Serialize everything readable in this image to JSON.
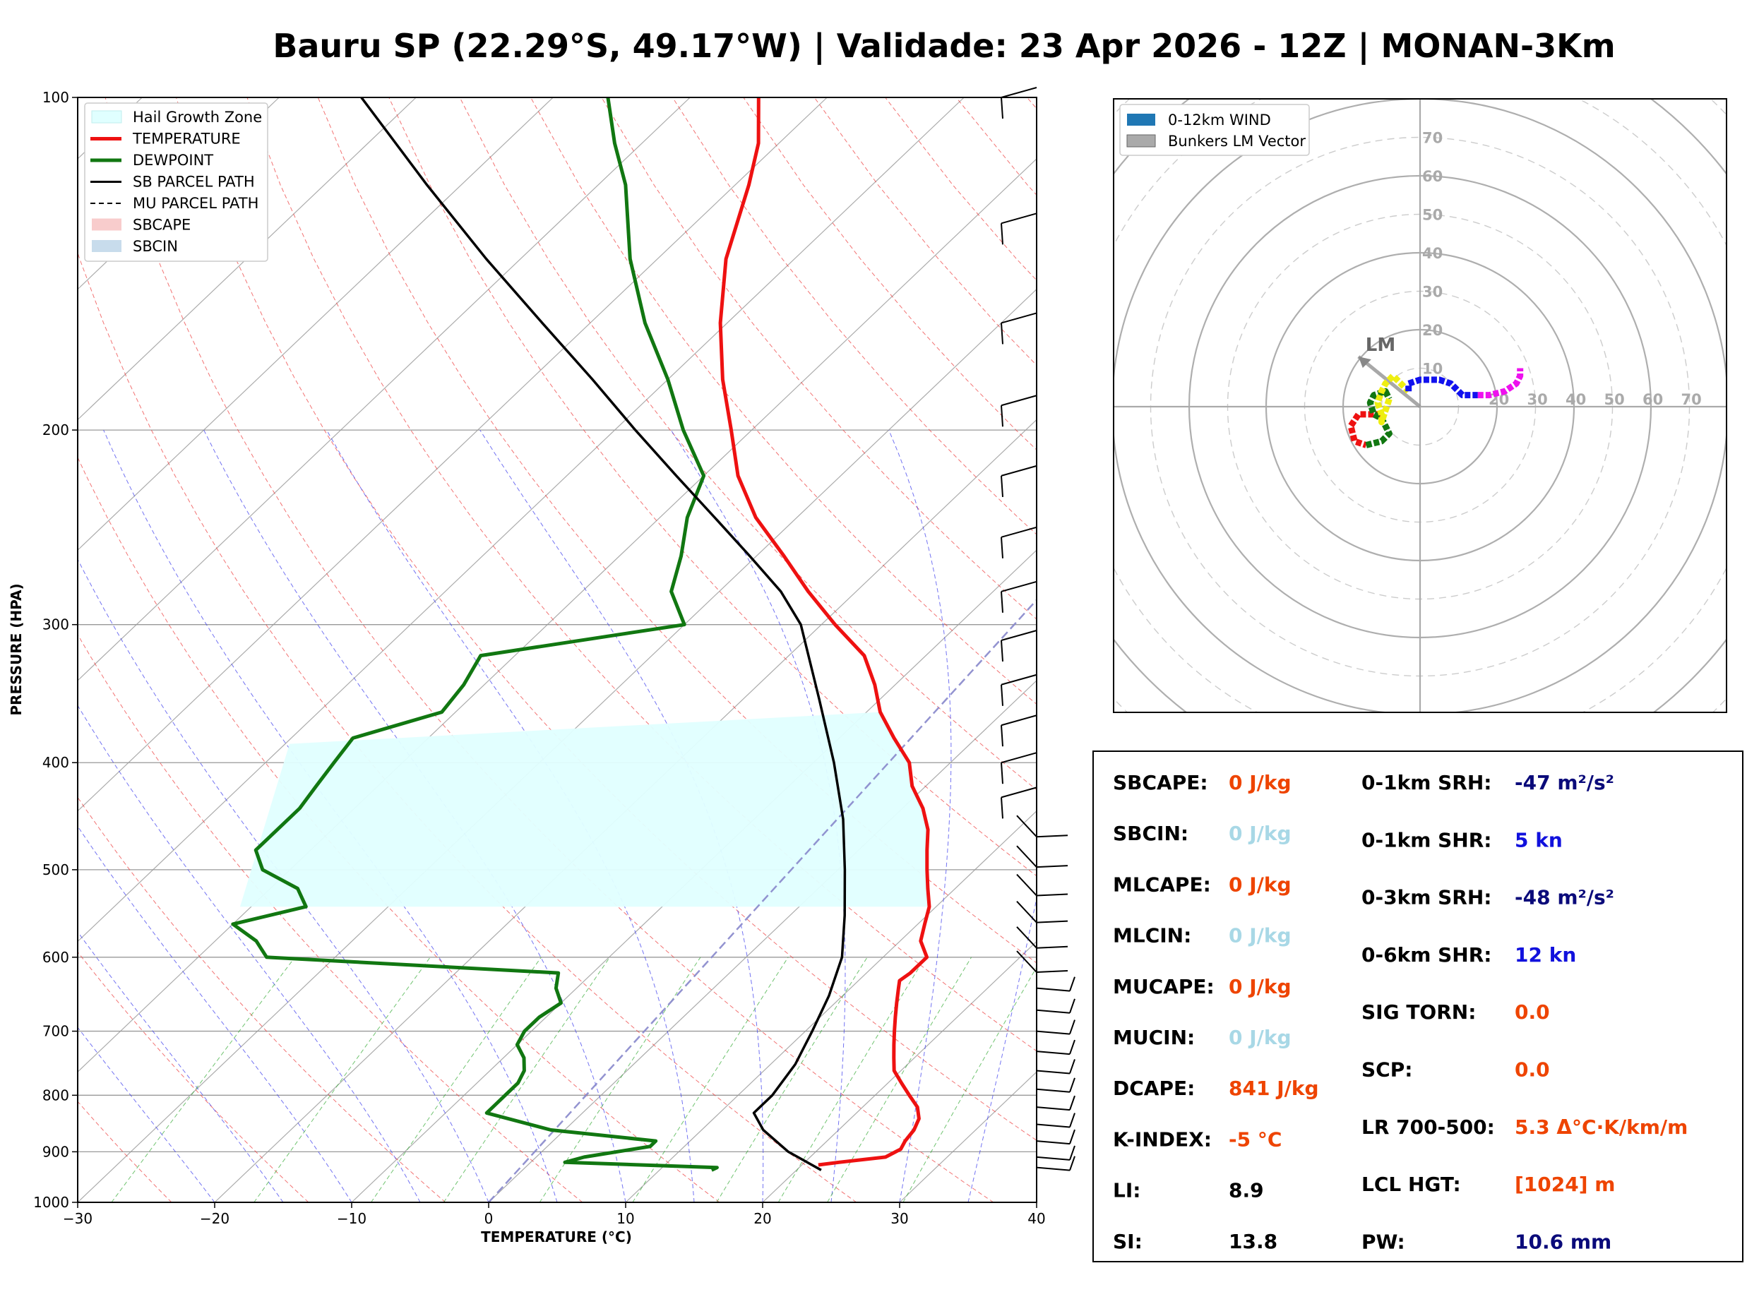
{
  "title": "Bauru SP (22.29°S, 49.17°W) | Validade: 23 Apr 2026 - 12Z | MONAN-3Km",
  "colors": {
    "temperature": "#ee1111",
    "dewpoint": "#117711",
    "parcel": "#000000",
    "hail_zone": "#e0ffff",
    "isotherm": "#888888",
    "dry_adiabat": "#ee4444",
    "moist_adiabat": "#4444ee",
    "mixing_ratio": "#33aa33",
    "hodo_ring": "#aaaaaa"
  },
  "chart_data": [
    {
      "type": "line",
      "subtype": "skew-t log-p",
      "xlabel": "TEMPERATURE (°C)",
      "ylabel": "PRESSURE (HPA)",
      "xlim": [
        -30,
        40
      ],
      "ylim": [
        1000,
        100
      ],
      "yscale": "log",
      "grid": true,
      "legend_position": "top-left",
      "x_ticks": [
        -30,
        -20,
        -10,
        0,
        10,
        20,
        30,
        40
      ],
      "x_tick_labels": [
        "−30",
        "−20",
        "−10",
        "0",
        "10",
        "20",
        "30",
        "40"
      ],
      "y_ticks": [
        1000,
        900,
        800,
        700,
        600,
        500,
        400,
        300,
        200,
        100
      ],
      "legend": [
        "Hail Growth Zone",
        "TEMPERATURE",
        "DEWPOINT",
        "SB PARCEL PATH",
        "MU PARCEL PATH",
        "SBCAPE",
        "SBCIN"
      ],
      "series": [
        {
          "name": "TEMPERATURE",
          "points": [
            [
              925,
              21.2
            ],
            [
              920,
              22.5
            ],
            [
              910,
              25.5
            ],
            [
              895,
              26.0
            ],
            [
              880,
              25.7
            ],
            [
              860,
              25.5
            ],
            [
              840,
              25.0
            ],
            [
              820,
              24.0
            ],
            [
              800,
              22.5
            ],
            [
              780,
              21.0
            ],
            [
              760,
              19.5
            ],
            [
              740,
              18.5
            ],
            [
              720,
              17.5
            ],
            [
              700,
              16.5
            ],
            [
              680,
              15.5
            ],
            [
              660,
              14.5
            ],
            [
              640,
              13.5
            ],
            [
              630,
              13.0
            ],
            [
              620,
              13.2
            ],
            [
              600,
              13.2
            ],
            [
              580,
              11.5
            ],
            [
              560,
              10.5
            ],
            [
              540,
              9.5
            ],
            [
              520,
              8.0
            ],
            [
              500,
              6.5
            ],
            [
              480,
              5.0
            ],
            [
              460,
              3.5
            ],
            [
              440,
              1.5
            ],
            [
              420,
              -1.0
            ],
            [
              400,
              -3.0
            ],
            [
              380,
              -6.0
            ],
            [
              360,
              -9.0
            ],
            [
              340,
              -11.5
            ],
            [
              320,
              -14.5
            ],
            [
              300,
              -19.0
            ],
            [
              280,
              -23.5
            ],
            [
              260,
              -28.0
            ],
            [
              240,
              -33.0
            ],
            [
              220,
              -37.5
            ],
            [
              200,
              -41.5
            ],
            [
              180,
              -46.0
            ],
            [
              160,
              -50.5
            ],
            [
              140,
              -55.0
            ],
            [
              120,
              -59.0
            ],
            [
              110,
              -61.5
            ],
            [
              100,
              -65.0
            ]
          ]
        },
        {
          "name": "DEWPOINT",
          "points": [
            [
              935,
              13.8
            ],
            [
              930,
              14.0
            ],
            [
              920,
              2.5
            ],
            [
              910,
              3.5
            ],
            [
              890,
              7.5
            ],
            [
              880,
              7.5
            ],
            [
              860,
              -1.0
            ],
            [
              830,
              -7.0
            ],
            [
              815,
              -7.0
            ],
            [
              800,
              -7.0
            ],
            [
              780,
              -7.0
            ],
            [
              760,
              -7.5
            ],
            [
              740,
              -8.5
            ],
            [
              720,
              -10.0
            ],
            [
              700,
              -10.5
            ],
            [
              680,
              -10.5
            ],
            [
              660,
              -10.0
            ],
            [
              640,
              -11.5
            ],
            [
              620,
              -12.5
            ],
            [
              600,
              -35.0
            ],
            [
              580,
              -37.0
            ],
            [
              560,
              -40.0
            ],
            [
              540,
              -36.0
            ],
            [
              520,
              -38.0
            ],
            [
              500,
              -42.0
            ],
            [
              480,
              -44.0
            ],
            [
              460,
              -44.0
            ],
            [
              440,
              -44.0
            ],
            [
              420,
              -44.5
            ],
            [
              400,
              -45.0
            ],
            [
              380,
              -45.5
            ],
            [
              360,
              -41.0
            ],
            [
              340,
              -41.5
            ],
            [
              320,
              -42.5
            ],
            [
              300,
              -30.0
            ],
            [
              280,
              -33.5
            ],
            [
              260,
              -35.5
            ],
            [
              240,
              -38.0
            ],
            [
              220,
              -40.0
            ],
            [
              200,
              -45.0
            ],
            [
              180,
              -50.0
            ],
            [
              160,
              -56.0
            ],
            [
              140,
              -62.0
            ],
            [
              120,
              -68.0
            ],
            [
              110,
              -72.0
            ],
            [
              100,
              -76.0
            ]
          ]
        },
        {
          "name": "SB PARCEL PATH",
          "points": [
            [
              935,
              21.8
            ],
            [
              900,
              18.0
            ],
            [
              860,
              14.5
            ],
            [
              830,
              12.5
            ],
            [
              800,
              12.5
            ],
            [
              750,
              11.8
            ],
            [
              700,
              10.5
            ],
            [
              650,
              9.0
            ],
            [
              600,
              7.0
            ],
            [
              550,
              4.0
            ],
            [
              500,
              0.5
            ],
            [
              450,
              -3.5
            ],
            [
              400,
              -8.5
            ],
            [
              350,
              -14.5
            ],
            [
              300,
              -21.5
            ],
            [
              280,
              -25.5
            ],
            [
              260,
              -30.5
            ],
            [
              240,
              -36.0
            ],
            [
              220,
              -42.0
            ],
            [
              200,
              -48.5
            ],
            [
              180,
              -55.5
            ],
            [
              160,
              -63.5
            ],
            [
              140,
              -72.5
            ],
            [
              120,
              -82.5
            ],
            [
              100,
              -94.0
            ]
          ]
        }
      ],
      "hail_growth_zone": {
        "p_bottom": 540,
        "p_top": 360
      },
      "wind_barbs_pressures": [
        100,
        130,
        160,
        190,
        220,
        250,
        280,
        310,
        340,
        370,
        400,
        430,
        460,
        490,
        520,
        550,
        580,
        610,
        640,
        670,
        700,
        730,
        760,
        790,
        820,
        850,
        880,
        910,
        930
      ]
    },
    {
      "type": "line",
      "subtype": "hodograph",
      "legend": [
        "0-12km WIND",
        "Bunkers LM Vector"
      ],
      "legend_position": "top-left",
      "ring_labels": [
        "10",
        "20",
        "30",
        "40",
        "50",
        "60",
        "70"
      ],
      "axis_ring_labels": [
        "20",
        "30",
        "40",
        "50",
        "60",
        "70"
      ],
      "bunkers_lm_label": "LM",
      "bunkers_lm_vector": [
        -16,
        13
      ],
      "segments": [
        {
          "color": "#ee1111",
          "points": [
            [
              -10,
              -2
            ],
            [
              -16,
              -2
            ],
            [
              -18,
              -5
            ],
            [
              -17,
              -9
            ],
            [
              -14,
              -10
            ]
          ]
        },
        {
          "color": "#117711",
          "points": [
            [
              -14,
              -10
            ],
            [
              -10,
              -9
            ],
            [
              -8,
              -7
            ],
            [
              -10,
              -3
            ],
            [
              -12,
              -2
            ],
            [
              -13,
              1
            ],
            [
              -12,
              3
            ],
            [
              -9,
              4
            ],
            [
              -8,
              2
            ]
          ]
        },
        {
          "color": "#eeee11",
          "points": [
            [
              -8,
              2
            ],
            [
              -9,
              -1
            ],
            [
              -10,
              -4
            ],
            [
              -10,
              -2
            ],
            [
              -11,
              1
            ],
            [
              -10,
              4
            ],
            [
              -9,
              6
            ],
            [
              -7,
              8
            ],
            [
              -5,
              6
            ],
            [
              -3,
              4
            ]
          ]
        },
        {
          "color": "#1111ee",
          "points": [
            [
              -3,
              4
            ],
            [
              -3,
              6
            ],
            [
              0,
              7
            ],
            [
              3,
              7
            ],
            [
              5,
              7
            ],
            [
              8,
              6
            ],
            [
              10,
              4
            ],
            [
              11,
              3
            ],
            [
              13,
              3
            ],
            [
              15,
              3
            ]
          ]
        },
        {
          "color": "#ee11ee",
          "points": [
            [
              15,
              3
            ],
            [
              18,
              3
            ],
            [
              22,
              4
            ],
            [
              25,
              6
            ],
            [
              26,
              8
            ],
            [
              26,
              10
            ]
          ]
        }
      ]
    }
  ],
  "stats": {
    "left": [
      {
        "name": "SBCAPE:",
        "value": "0 J/kg",
        "color": "#ee4400"
      },
      {
        "name": "SBCIN:",
        "value": "0 J/kg",
        "color": "#a8d8e6"
      },
      {
        "name": "MLCAPE:",
        "value": "0 J/kg",
        "color": "#ee4400"
      },
      {
        "name": "MLCIN:",
        "value": "0 J/kg",
        "color": "#a8d8e6"
      },
      {
        "name": "MUCAPE:",
        "value": "0 J/kg",
        "color": "#ee4400"
      },
      {
        "name": "MUCIN:",
        "value": "0 J/kg",
        "color": "#a8d8e6"
      },
      {
        "name": "DCAPE:",
        "value": "841 J/kg",
        "color": "#ee4400"
      },
      {
        "name": "K-INDEX:",
        "value": "-5 °C",
        "color": "#ee4400"
      },
      {
        "name": "LI:",
        "value": "8.9",
        "color": "#000000"
      },
      {
        "name": "SI:",
        "value": "13.8",
        "color": "#000000"
      }
    ],
    "right": [
      {
        "name": "0-1km SRH:",
        "value": "-47 m²/s²",
        "color": "#0a0a7a"
      },
      {
        "name": "0-1km SHR:",
        "value": "5 kn",
        "color": "#1111dd"
      },
      {
        "name": "0-3km SRH:",
        "value": "-48 m²/s²",
        "color": "#0a0a7a"
      },
      {
        "name": "0-6km SHR:",
        "value": "12 kn",
        "color": "#1111dd"
      },
      {
        "name": "SIG TORN:",
        "value": "0.0",
        "color": "#ee4400"
      },
      {
        "name": "SCP:",
        "value": "0.0",
        "color": "#ee4400"
      },
      {
        "name": "LR 700-500:",
        "value": "5.3 Δ°C·K/km/m",
        "color": "#ee4400"
      },
      {
        "name": "LCL HGT:",
        "value": "[1024] m",
        "color": "#ee4400"
      },
      {
        "name": "PW:",
        "value": "10.6 mm",
        "color": "#0a0a7a"
      }
    ]
  }
}
